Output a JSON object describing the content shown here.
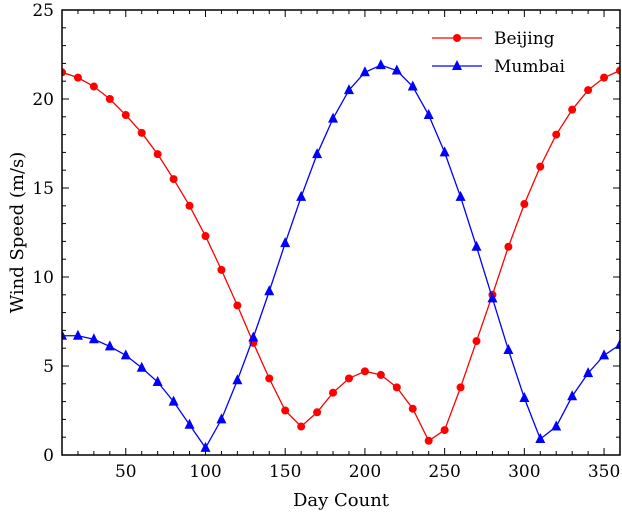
{
  "chart_data": {
    "type": "line",
    "xlabel": "Day Count",
    "ylabel": "Wind Speed (m/s)",
    "xlim": [
      10,
      360
    ],
    "ylim": [
      0,
      25
    ],
    "xticks": [
      50,
      100,
      150,
      200,
      250,
      300,
      350
    ],
    "yticks": [
      0,
      5,
      10,
      15,
      20,
      25
    ],
    "grid": false,
    "legend_position": "top-right",
    "x": [
      10,
      20,
      30,
      40,
      50,
      60,
      70,
      80,
      90,
      100,
      110,
      120,
      130,
      140,
      150,
      160,
      170,
      180,
      190,
      200,
      210,
      220,
      230,
      240,
      250,
      260,
      270,
      280,
      290,
      300,
      310,
      320,
      330,
      340,
      350,
      360
    ],
    "series": [
      {
        "name": "Beijing",
        "color": "#ff0000",
        "marker": "circle",
        "values": [
          21.5,
          21.2,
          20.7,
          20.0,
          19.1,
          18.1,
          16.9,
          15.5,
          14.0,
          12.3,
          10.4,
          8.4,
          6.3,
          4.3,
          2.5,
          1.6,
          2.4,
          3.5,
          4.3,
          4.7,
          4.5,
          3.8,
          2.6,
          0.8,
          1.4,
          3.8,
          6.4,
          9.0,
          11.7,
          14.1,
          16.2,
          18.0,
          19.4,
          20.5,
          21.2,
          21.6
        ]
      },
      {
        "name": "Mumbai",
        "color": "#0000ff",
        "marker": "triangle",
        "values": [
          6.7,
          6.7,
          6.5,
          6.1,
          5.6,
          4.9,
          4.1,
          3.0,
          1.7,
          0.4,
          2.0,
          4.2,
          6.6,
          9.2,
          11.9,
          14.5,
          16.9,
          18.9,
          20.5,
          21.5,
          21.9,
          21.6,
          20.7,
          19.1,
          17.0,
          14.5,
          11.7,
          8.8,
          5.9,
          3.2,
          0.9,
          1.6,
          3.3,
          4.6,
          5.6,
          6.2
        ]
      }
    ]
  }
}
